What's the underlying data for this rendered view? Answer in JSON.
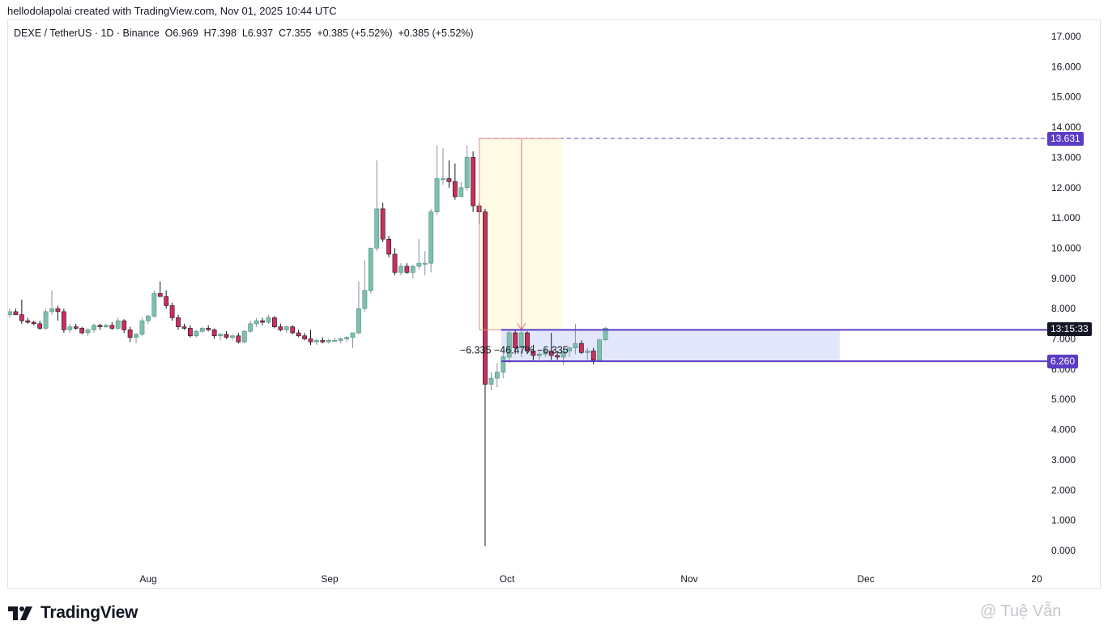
{
  "header": {
    "text": "hellodolapolai created with TradingView.com, Nov 01, 2025 10:44 UTC"
  },
  "legend": {
    "symbol": "DEXE / TetherUS · 1D · Binance",
    "open": "O6.969",
    "high": "H7.398",
    "low": "L6.937",
    "close": "C7.355",
    "change1": "+0.385 (+5.52%)",
    "change2": "+0.385 (+5.52%)"
  },
  "footer": {
    "logo_text": "TradingView",
    "watermark": "@ Tuệ Vẫn"
  },
  "tags": {
    "top": "13.631",
    "clock": "13:15:33",
    "bottom": "6.260"
  },
  "measure_label": "−6.335  −46.47%  −6.335",
  "colors": {
    "up": "#7fbfb0",
    "down": "#cc2f5a",
    "accent": "#5b3cc4",
    "highlight": "#fdfbe3",
    "zone": "#e2e7fb"
  },
  "chart_data": {
    "type": "candlestick",
    "title": "DEXE / TetherUS · 1D · Binance",
    "y_ticks": [
      "0.000",
      "1.000",
      "2.000",
      "3.000",
      "4.000",
      "5.000",
      "6.000",
      "7.000",
      "8.000",
      "9.000",
      "10.000",
      "11.000",
      "12.000",
      "13.000",
      "14.000",
      "15.000",
      "16.000",
      "17.000"
    ],
    "ylim": [
      0,
      17
    ],
    "x_ticks": [
      "Aug",
      "Sep",
      "Oct",
      "Nov",
      "Dec",
      "20"
    ],
    "series": [
      {
        "candles": [
          {
            "o": 7.8,
            "h": 8.0,
            "l": 7.7,
            "c": 7.9
          },
          {
            "o": 7.9,
            "h": 8.0,
            "l": 7.8,
            "c": 7.8
          },
          {
            "o": 7.8,
            "h": 8.3,
            "l": 7.5,
            "c": 7.6
          },
          {
            "o": 7.6,
            "h": 7.7,
            "l": 7.5,
            "c": 7.55
          },
          {
            "o": 7.55,
            "h": 7.6,
            "l": 7.45,
            "c": 7.5
          },
          {
            "o": 7.5,
            "h": 7.6,
            "l": 7.3,
            "c": 7.35
          },
          {
            "o": 7.35,
            "h": 8.0,
            "l": 7.3,
            "c": 7.9
          },
          {
            "o": 7.9,
            "h": 8.6,
            "l": 7.8,
            "c": 8.0
          },
          {
            "o": 8.0,
            "h": 8.1,
            "l": 7.6,
            "c": 7.9
          },
          {
            "o": 7.9,
            "h": 8.0,
            "l": 7.2,
            "c": 7.3
          },
          {
            "o": 7.3,
            "h": 7.5,
            "l": 7.2,
            "c": 7.4
          },
          {
            "o": 7.4,
            "h": 7.5,
            "l": 7.3,
            "c": 7.35
          },
          {
            "o": 7.35,
            "h": 7.4,
            "l": 7.15,
            "c": 7.2
          },
          {
            "o": 7.2,
            "h": 7.35,
            "l": 7.1,
            "c": 7.3
          },
          {
            "o": 7.3,
            "h": 7.5,
            "l": 7.2,
            "c": 7.45
          },
          {
            "o": 7.45,
            "h": 7.5,
            "l": 7.3,
            "c": 7.4
          },
          {
            "o": 7.4,
            "h": 7.5,
            "l": 7.35,
            "c": 7.45
          },
          {
            "o": 7.45,
            "h": 7.55,
            "l": 7.3,
            "c": 7.35
          },
          {
            "o": 7.35,
            "h": 7.7,
            "l": 7.3,
            "c": 7.6
          },
          {
            "o": 7.6,
            "h": 7.65,
            "l": 7.2,
            "c": 7.3
          },
          {
            "o": 7.3,
            "h": 7.4,
            "l": 6.9,
            "c": 7.05
          },
          {
            "o": 7.05,
            "h": 7.2,
            "l": 6.85,
            "c": 7.15
          },
          {
            "o": 7.15,
            "h": 7.7,
            "l": 7.1,
            "c": 7.6
          },
          {
            "o": 7.6,
            "h": 7.8,
            "l": 7.5,
            "c": 7.75
          },
          {
            "o": 7.75,
            "h": 8.6,
            "l": 7.7,
            "c": 8.5
          },
          {
            "o": 8.5,
            "h": 8.9,
            "l": 8.4,
            "c": 8.4
          },
          {
            "o": 8.4,
            "h": 8.6,
            "l": 8.0,
            "c": 8.1
          },
          {
            "o": 8.1,
            "h": 8.2,
            "l": 7.6,
            "c": 7.7
          },
          {
            "o": 7.7,
            "h": 7.8,
            "l": 7.3,
            "c": 7.4
          },
          {
            "o": 7.4,
            "h": 7.5,
            "l": 7.3,
            "c": 7.35
          },
          {
            "o": 7.35,
            "h": 7.45,
            "l": 7.05,
            "c": 7.1
          },
          {
            "o": 7.1,
            "h": 7.3,
            "l": 7.05,
            "c": 7.25
          },
          {
            "o": 7.25,
            "h": 7.4,
            "l": 7.2,
            "c": 7.35
          },
          {
            "o": 7.35,
            "h": 7.45,
            "l": 7.25,
            "c": 7.3
          },
          {
            "o": 7.3,
            "h": 7.35,
            "l": 7.0,
            "c": 7.1
          },
          {
            "o": 7.1,
            "h": 7.2,
            "l": 6.95,
            "c": 7.15
          },
          {
            "o": 7.15,
            "h": 7.25,
            "l": 7.0,
            "c": 7.05
          },
          {
            "o": 7.05,
            "h": 7.15,
            "l": 6.95,
            "c": 7.1
          },
          {
            "o": 7.1,
            "h": 7.2,
            "l": 6.85,
            "c": 6.9
          },
          {
            "o": 6.9,
            "h": 7.3,
            "l": 6.85,
            "c": 7.25
          },
          {
            "o": 7.25,
            "h": 7.6,
            "l": 7.2,
            "c": 7.5
          },
          {
            "o": 7.5,
            "h": 7.7,
            "l": 7.4,
            "c": 7.6
          },
          {
            "o": 7.6,
            "h": 7.7,
            "l": 7.45,
            "c": 7.55
          },
          {
            "o": 7.55,
            "h": 7.8,
            "l": 7.5,
            "c": 7.7
          },
          {
            "o": 7.7,
            "h": 7.75,
            "l": 7.35,
            "c": 7.4
          },
          {
            "o": 7.4,
            "h": 7.5,
            "l": 7.25,
            "c": 7.3
          },
          {
            "o": 7.3,
            "h": 7.45,
            "l": 7.2,
            "c": 7.4
          },
          {
            "o": 7.4,
            "h": 7.45,
            "l": 7.15,
            "c": 7.2
          },
          {
            "o": 7.2,
            "h": 7.3,
            "l": 7.05,
            "c": 7.1
          },
          {
            "o": 7.1,
            "h": 7.2,
            "l": 6.95,
            "c": 7.0
          },
          {
            "o": 7.0,
            "h": 7.3,
            "l": 6.8,
            "c": 6.9
          },
          {
            "o": 6.9,
            "h": 7.0,
            "l": 6.8,
            "c": 6.95
          },
          {
            "o": 6.95,
            "h": 7.05,
            "l": 6.85,
            "c": 6.9
          },
          {
            "o": 6.9,
            "h": 7.0,
            "l": 6.85,
            "c": 6.95
          },
          {
            "o": 6.95,
            "h": 7.05,
            "l": 6.9,
            "c": 6.95
          },
          {
            "o": 6.95,
            "h": 7.05,
            "l": 6.85,
            "c": 7.0
          },
          {
            "o": 7.0,
            "h": 7.1,
            "l": 6.9,
            "c": 7.05
          },
          {
            "o": 7.05,
            "h": 7.2,
            "l": 6.7,
            "c": 7.2
          },
          {
            "o": 7.2,
            "h": 8.9,
            "l": 7.15,
            "c": 8.0
          },
          {
            "o": 8.0,
            "h": 9.6,
            "l": 7.9,
            "c": 8.6
          },
          {
            "o": 8.6,
            "h": 10.0,
            "l": 8.5,
            "c": 10.0
          },
          {
            "o": 10.0,
            "h": 12.9,
            "l": 9.9,
            "c": 11.3
          },
          {
            "o": 11.3,
            "h": 11.5,
            "l": 10.2,
            "c": 10.3
          },
          {
            "o": 10.3,
            "h": 10.4,
            "l": 9.7,
            "c": 9.8
          },
          {
            "o": 9.8,
            "h": 10.0,
            "l": 9.1,
            "c": 9.2
          },
          {
            "o": 9.2,
            "h": 9.5,
            "l": 9.1,
            "c": 9.4
          },
          {
            "o": 9.4,
            "h": 9.5,
            "l": 9.15,
            "c": 9.2
          },
          {
            "o": 9.2,
            "h": 9.45,
            "l": 9.0,
            "c": 9.4
          },
          {
            "o": 9.4,
            "h": 10.3,
            "l": 9.3,
            "c": 9.5
          },
          {
            "o": 9.5,
            "h": 9.9,
            "l": 9.1,
            "c": 9.5
          },
          {
            "o": 9.5,
            "h": 11.3,
            "l": 9.2,
            "c": 11.2
          },
          {
            "o": 11.2,
            "h": 13.4,
            "l": 11.1,
            "c": 12.3
          },
          {
            "o": 12.3,
            "h": 13.3,
            "l": 12.1,
            "c": 12.3
          },
          {
            "o": 12.3,
            "h": 12.9,
            "l": 12.0,
            "c": 12.2
          },
          {
            "o": 12.2,
            "h": 12.8,
            "l": 11.6,
            "c": 11.7
          },
          {
            "o": 11.7,
            "h": 12.2,
            "l": 11.7,
            "c": 12.0
          },
          {
            "o": 12.0,
            "h": 13.4,
            "l": 11.9,
            "c": 13.0
          },
          {
            "o": 13.0,
            "h": 13.2,
            "l": 11.2,
            "c": 11.4
          },
          {
            "o": 11.4,
            "h": 11.5,
            "l": 10.8,
            "c": 11.2
          },
          {
            "o": 11.2,
            "h": 11.3,
            "l": 0.15,
            "c": 5.5
          },
          {
            "o": 5.5,
            "h": 5.9,
            "l": 5.3,
            "c": 5.7
          },
          {
            "o": 5.7,
            "h": 6.2,
            "l": 5.4,
            "c": 5.9
          },
          {
            "o": 5.9,
            "h": 6.5,
            "l": 5.7,
            "c": 6.4
          },
          {
            "o": 6.4,
            "h": 7.3,
            "l": 6.2,
            "c": 7.2
          },
          {
            "o": 7.2,
            "h": 7.3,
            "l": 6.5,
            "c": 6.7
          },
          {
            "o": 6.7,
            "h": 7.4,
            "l": 6.4,
            "c": 7.2
          },
          {
            "o": 7.2,
            "h": 7.25,
            "l": 6.5,
            "c": 6.6
          },
          {
            "o": 6.6,
            "h": 6.8,
            "l": 6.3,
            "c": 6.45
          },
          {
            "o": 6.45,
            "h": 6.6,
            "l": 6.3,
            "c": 6.5
          },
          {
            "o": 6.5,
            "h": 6.7,
            "l": 6.4,
            "c": 6.6
          },
          {
            "o": 6.6,
            "h": 7.2,
            "l": 6.3,
            "c": 6.45
          },
          {
            "o": 6.45,
            "h": 6.6,
            "l": 6.3,
            "c": 6.4
          },
          {
            "o": 6.4,
            "h": 6.7,
            "l": 6.15,
            "c": 6.6
          },
          {
            "o": 6.6,
            "h": 6.75,
            "l": 6.4,
            "c": 6.7
          },
          {
            "o": 6.7,
            "h": 7.5,
            "l": 6.5,
            "c": 6.85
          },
          {
            "o": 6.85,
            "h": 6.95,
            "l": 6.5,
            "c": 6.55
          },
          {
            "o": 6.55,
            "h": 6.7,
            "l": 6.3,
            "c": 6.6
          },
          {
            "o": 6.6,
            "h": 6.7,
            "l": 6.15,
            "c": 6.3
          },
          {
            "o": 6.3,
            "h": 7.0,
            "l": 6.25,
            "c": 6.97
          },
          {
            "o": 6.969,
            "h": 7.398,
            "l": 6.937,
            "c": 7.355
          }
        ]
      }
    ],
    "annotations": {
      "level_top": 13.631,
      "level_bottom": 6.26,
      "zone_top": 7.3,
      "measure_change": -6.335,
      "measure_percent": "-46.47%"
    }
  }
}
